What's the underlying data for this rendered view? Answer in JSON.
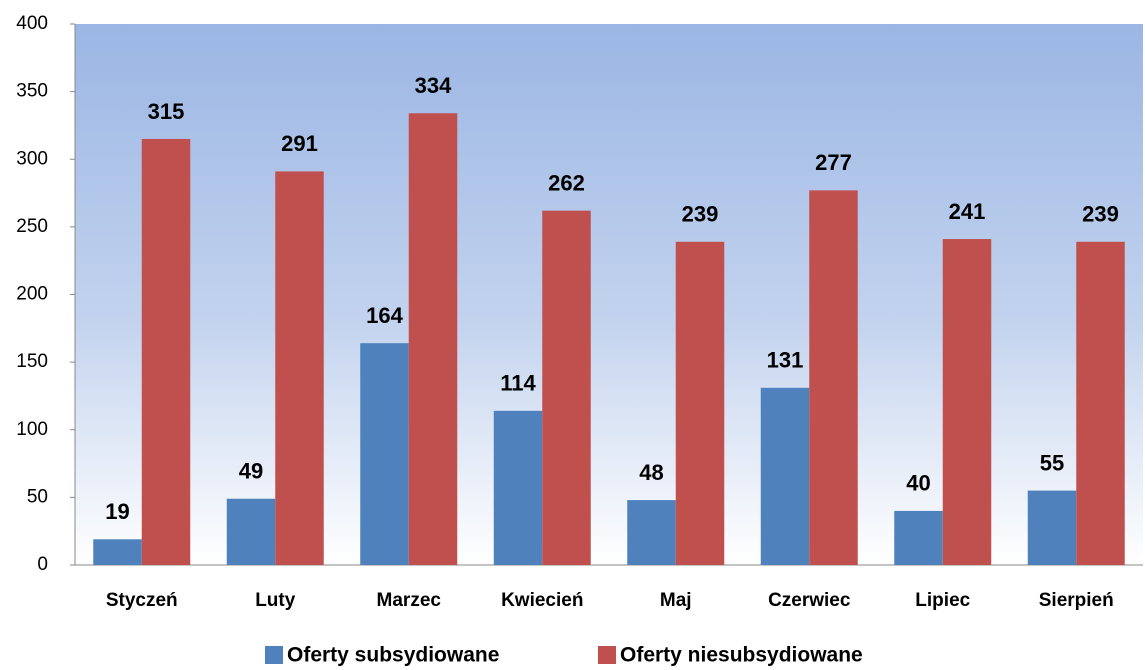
{
  "chart_data": {
    "type": "bar",
    "categories": [
      "Styczeń",
      "Luty",
      "Marzec",
      "Kwiecień",
      "Maj",
      "Czerwiec",
      "Lipiec",
      "Sierpień"
    ],
    "series": [
      {
        "name": "Oferty subsydiowane",
        "color": "#4f81bd",
        "values": [
          19,
          49,
          164,
          114,
          48,
          131,
          40,
          55
        ]
      },
      {
        "name": "Oferty niesubsydiowane",
        "color": "#c0504d",
        "values": [
          315,
          291,
          334,
          262,
          239,
          277,
          241,
          239
        ]
      }
    ],
    "ylim": [
      0,
      400
    ],
    "yticks": [
      0,
      50,
      100,
      150,
      200,
      250,
      300,
      350,
      400
    ],
    "grid": false,
    "legend": "bottom",
    "data_labels": true
  }
}
